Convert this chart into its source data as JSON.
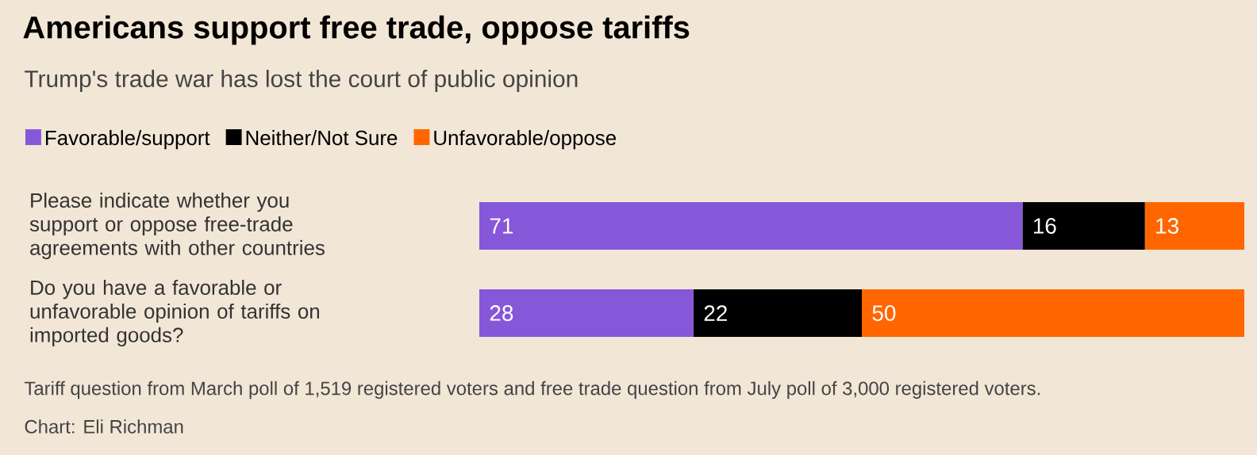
{
  "chart_data": {
    "type": "bar",
    "orientation": "horizontal",
    "stacked": true,
    "data_labels": true,
    "legend": "top left",
    "tick_labels": "y",
    "title": "Americans support free trade, oppose tariffs",
    "subtitle": "Trump's trade war has lost the court of public opinion",
    "categories": [
      "Please indicate whether you support or oppose free-trade agreements with other countries",
      "Do you have a favorable or unfavorable opinion of tariffs on imported goods?"
    ],
    "series": [
      {
        "name": "Favorable/support",
        "color": "#8757d9",
        "values": [
          71,
          28
        ]
      },
      {
        "name": "Neither/Not Sure",
        "color": "#000000",
        "values": [
          16,
          22
        ]
      },
      {
        "name": "Unfavorable/oppose",
        "color": "#ff6600",
        "values": [
          13,
          50
        ]
      }
    ],
    "annotations": [
      "Tariff question from March poll of 1,519 registered voters and free trade question from July poll of 3,000 registered voters.",
      "Chart: Eli Richman"
    ]
  }
}
